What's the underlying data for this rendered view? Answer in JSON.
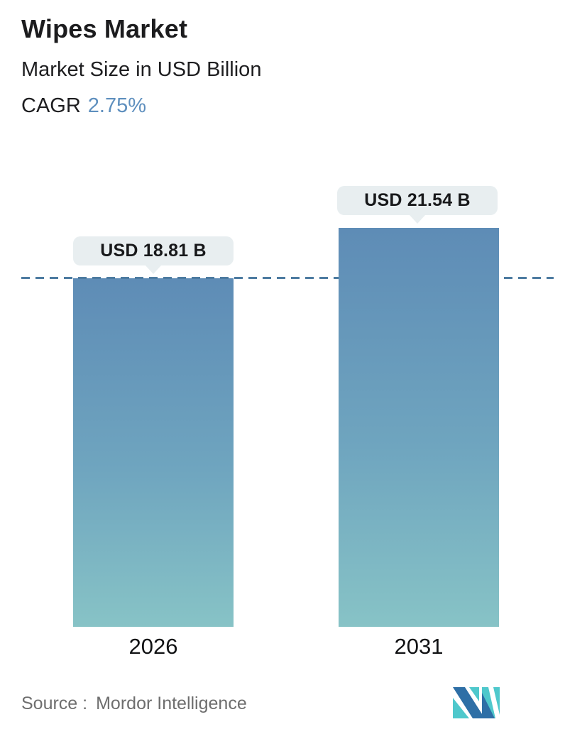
{
  "header": {
    "title": "Wipes Market",
    "subtitle": "Market Size in USD Billion",
    "cagr_label": "CAGR",
    "cagr_value": "2.75%"
  },
  "chart_data": {
    "type": "bar",
    "categories": [
      "2026",
      "2031"
    ],
    "values": [
      18.81,
      21.54
    ],
    "value_labels": [
      "USD 18.81 B",
      "USD 21.54 B"
    ],
    "units": "USD Billion",
    "title": "Wipes Market",
    "subtitle": "Market Size in USD Billion",
    "cagr": "2.75%",
    "reference_line": {
      "value": 18.81,
      "style": "dashed"
    },
    "legend": "none",
    "grid": "off",
    "ylim": [
      0,
      22
    ],
    "bar_gradient_top": "#5E8CB6",
    "bar_gradient_bottom": "#87C3C6",
    "reference_line_color": "#4D7BA1",
    "badge_background": "#E8EEF0"
  },
  "footer": {
    "source_label": "Source :",
    "source_value": "Mordor Intelligence"
  },
  "colors": {
    "accent_blue": "#5E8FBE",
    "title_text": "#1C1C1E",
    "source_gray": "#6E6E6E",
    "logo_dark_blue": "#2E6FA6",
    "logo_teal": "#4FC8CC"
  }
}
